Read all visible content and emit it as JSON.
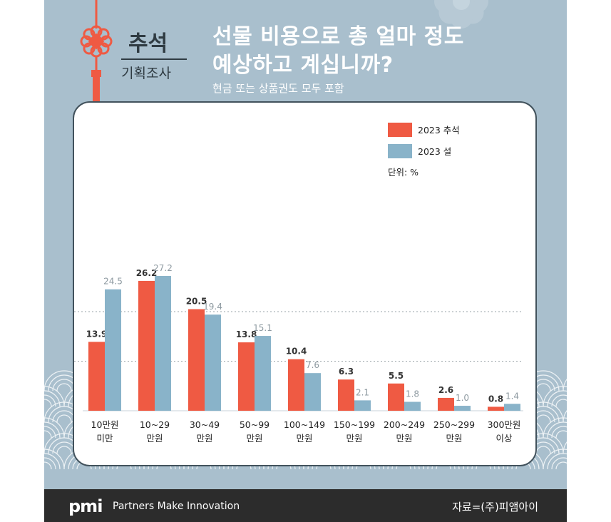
{
  "header": {
    "badge_top": "추석",
    "badge_bottom": "기획조사",
    "title_line1": "선물 비용으로 총 얼마 정도",
    "title_line2": "예상하고 계십니까?",
    "subtitle": "현금 또는 상품권도 모두 포함"
  },
  "chart_data": {
    "type": "bar",
    "unit_label": "단위: %",
    "categories": [
      [
        "10만원",
        "미만"
      ],
      [
        "10~29",
        "만원"
      ],
      [
        "30~49",
        "만원"
      ],
      [
        "50~99",
        "만원"
      ],
      [
        "100~149",
        "만원"
      ],
      [
        "150~199",
        "만원"
      ],
      [
        "200~249",
        "만원"
      ],
      [
        "250~299",
        "만원"
      ],
      [
        "300만원",
        "이상"
      ]
    ],
    "series": [
      {
        "name": "2023 추석",
        "color": "#ef5a43",
        "values": [
          13.9,
          26.2,
          20.5,
          13.8,
          10.4,
          6.3,
          5.5,
          2.6,
          0.8
        ],
        "labels": [
          "13.9",
          "26.2",
          "20.5",
          "13.8",
          "10.4",
          "6.3",
          "5.5",
          "2.6",
          "0.8"
        ]
      },
      {
        "name": "2023 설",
        "color": "#89b3c9",
        "values": [
          24.5,
          27.2,
          19.4,
          15.1,
          7.6,
          2.1,
          1.8,
          1.0,
          1.4
        ],
        "labels": [
          "24.5",
          "27.2",
          "19.4",
          "15.1",
          "7.6",
          "2.1",
          "1.8",
          "1.0",
          "1.4"
        ]
      }
    ],
    "ylim": [
      0,
      30
    ],
    "grid": "dotted",
    "legend": "top-right"
  },
  "footer": {
    "logo": "pmi",
    "tagline": "Partners Make Innovation",
    "source": "자료=(주)피앰아이"
  },
  "colors": {
    "background": "#a9bfcd",
    "card_border": "#42525c",
    "footer": "#2c2c2c",
    "knot": "#ef5a43"
  }
}
